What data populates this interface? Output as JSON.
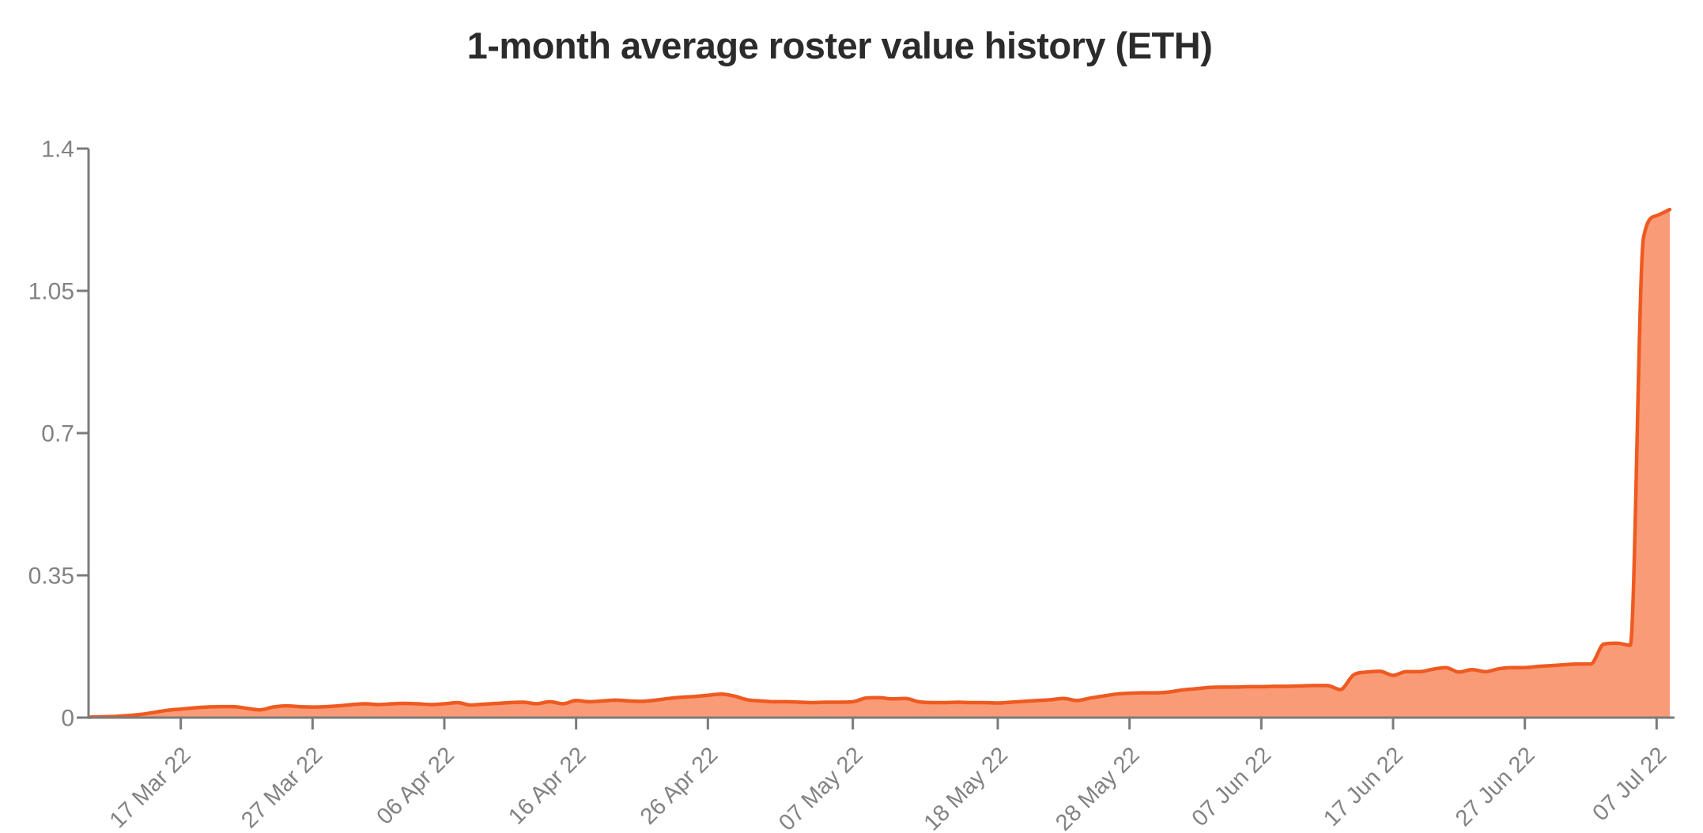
{
  "page": {
    "background": "#ffffff"
  },
  "chart_data": {
    "type": "area",
    "title": "1-month average roster value history (ETH)",
    "xlabel": "",
    "ylabel": "",
    "unit": "ETH",
    "ylim": [
      0,
      1.4
    ],
    "y_ticks": [
      0,
      0.35,
      0.7,
      1.05,
      1.4
    ],
    "y_tick_labels": [
      "0",
      "0.35",
      "0.7",
      "1.05",
      "1.4"
    ],
    "x_tick_labels": [
      "17 Mar 22",
      "27 Mar 22",
      "06 Apr 22",
      "16 Apr 22",
      "26 Apr 22",
      "07 May 22",
      "18 May 22",
      "28 May 22",
      "07 Jun 22",
      "17 Jun 22",
      "27 Jun 22",
      "07 Jul 22"
    ],
    "grid": false,
    "legend": "none",
    "colors": {
      "line": "#ee5a20",
      "area_fill": "#fa9b78",
      "axis": "#7b7b7b",
      "tick_label": "#828282",
      "title": "#2b2b2b",
      "background": "#ffffff"
    },
    "series": [
      {
        "points": [
          [
            "10 Mar 22",
            0.001
          ],
          [
            "11 Mar 22",
            0.002
          ],
          [
            "12 Mar 22",
            0.003
          ],
          [
            "13 Mar 22",
            0.005
          ],
          [
            "14 Mar 22",
            0.008
          ],
          [
            "15 Mar 22",
            0.013
          ],
          [
            "16 Mar 22",
            0.018
          ],
          [
            "17 Mar 22",
            0.021
          ],
          [
            "18 Mar 22",
            0.024
          ],
          [
            "19 Mar 22",
            0.026
          ],
          [
            "20 Mar 22",
            0.027
          ],
          [
            "21 Mar 22",
            0.027
          ],
          [
            "22 Mar 22",
            0.023
          ],
          [
            "23 Mar 22",
            0.019
          ],
          [
            "24 Mar 22",
            0.026
          ],
          [
            "25 Mar 22",
            0.029
          ],
          [
            "26 Mar 22",
            0.027
          ],
          [
            "27 Mar 22",
            0.026
          ],
          [
            "28 Mar 22",
            0.027
          ],
          [
            "29 Mar 22",
            0.029
          ],
          [
            "30 Mar 22",
            0.032
          ],
          [
            "31 Mar 22",
            0.034
          ],
          [
            "01 Apr 22",
            0.032
          ],
          [
            "02 Apr 22",
            0.034
          ],
          [
            "03 Apr 22",
            0.035
          ],
          [
            "04 Apr 22",
            0.034
          ],
          [
            "05 Apr 22",
            0.032
          ],
          [
            "06 Apr 22",
            0.034
          ],
          [
            "07 Apr 22",
            0.037
          ],
          [
            "08 Apr 22",
            0.031
          ],
          [
            "09 Apr 22",
            0.033
          ],
          [
            "10 Apr 22",
            0.035
          ],
          [
            "11 Apr 22",
            0.037
          ],
          [
            "12 Apr 22",
            0.038
          ],
          [
            "13 Apr 22",
            0.034
          ],
          [
            "14 Apr 22",
            0.039
          ],
          [
            "15 Apr 22",
            0.034
          ],
          [
            "16 Apr 22",
            0.042
          ],
          [
            "17 Apr 22",
            0.039
          ],
          [
            "18 Apr 22",
            0.041
          ],
          [
            "19 Apr 22",
            0.043
          ],
          [
            "20 Apr 22",
            0.041
          ],
          [
            "21 Apr 22",
            0.04
          ],
          [
            "22 Apr 22",
            0.043
          ],
          [
            "23 Apr 22",
            0.047
          ],
          [
            "24 Apr 22",
            0.05
          ],
          [
            "25 Apr 22",
            0.052
          ],
          [
            "26 Apr 22",
            0.055
          ],
          [
            "27 Apr 22",
            0.058
          ],
          [
            "28 Apr 22",
            0.053
          ],
          [
            "29 Apr 22",
            0.044
          ],
          [
            "30 Apr 22",
            0.041
          ],
          [
            "01 May 22",
            0.039
          ],
          [
            "02 May 22",
            0.039
          ],
          [
            "03 May 22",
            0.038
          ],
          [
            "04 May 22",
            0.037
          ],
          [
            "05 May 22",
            0.038
          ],
          [
            "06 May 22",
            0.038
          ],
          [
            "07 May 22",
            0.039
          ],
          [
            "08 May 22",
            0.048
          ],
          [
            "09 May 22",
            0.049
          ],
          [
            "10 May 22",
            0.046
          ],
          [
            "11 May 22",
            0.047
          ],
          [
            "12 May 22",
            0.039
          ],
          [
            "13 May 22",
            0.037
          ],
          [
            "14 May 22",
            0.037
          ],
          [
            "15 May 22",
            0.038
          ],
          [
            "16 May 22",
            0.037
          ],
          [
            "17 May 22",
            0.037
          ],
          [
            "18 May 22",
            0.036
          ],
          [
            "19 May 22",
            0.038
          ],
          [
            "20 May 22",
            0.04
          ],
          [
            "21 May 22",
            0.042
          ],
          [
            "22 May 22",
            0.044
          ],
          [
            "23 May 22",
            0.047
          ],
          [
            "24 May 22",
            0.042
          ],
          [
            "25 May 22",
            0.048
          ],
          [
            "26 May 22",
            0.053
          ],
          [
            "27 May 22",
            0.058
          ],
          [
            "28 May 22",
            0.06
          ],
          [
            "29 May 22",
            0.061
          ],
          [
            "30 May 22",
            0.061
          ],
          [
            "31 May 22",
            0.063
          ],
          [
            "01 Jun 22",
            0.068
          ],
          [
            "02 Jun 22",
            0.071
          ],
          [
            "03 Jun 22",
            0.074
          ],
          [
            "04 Jun 22",
            0.075
          ],
          [
            "05 Jun 22",
            0.075
          ],
          [
            "06 Jun 22",
            0.076
          ],
          [
            "07 Jun 22",
            0.076
          ],
          [
            "08 Jun 22",
            0.077
          ],
          [
            "09 Jun 22",
            0.077
          ],
          [
            "10 Jun 22",
            0.078
          ],
          [
            "11 Jun 22",
            0.079
          ],
          [
            "12 Jun 22",
            0.079
          ],
          [
            "13 Jun 22",
            0.069
          ],
          [
            "14 Jun 22",
            0.105
          ],
          [
            "15 Jun 22",
            0.112
          ],
          [
            "16 Jun 22",
            0.114
          ],
          [
            "17 Jun 22",
            0.104
          ],
          [
            "18 Jun 22",
            0.113
          ],
          [
            "19 Jun 22",
            0.113
          ],
          [
            "20 Jun 22",
            0.119
          ],
          [
            "21 Jun 22",
            0.123
          ],
          [
            "22 Jun 22",
            0.112
          ],
          [
            "23 Jun 22",
            0.118
          ],
          [
            "24 Jun 22",
            0.113
          ],
          [
            "25 Jun 22",
            0.12
          ],
          [
            "26 Jun 22",
            0.123
          ],
          [
            "27 Jun 22",
            0.123
          ],
          [
            "28 Jun 22",
            0.126
          ],
          [
            "29 Jun 22",
            0.128
          ],
          [
            "30 Jun 22",
            0.13
          ],
          [
            "01 Jul 22",
            0.132
          ],
          [
            "02 Jul 22",
            0.132
          ],
          [
            "03 Jul 22",
            0.181
          ],
          [
            "04 Jul 22",
            0.183
          ],
          [
            "05 Jul 22",
            0.178
          ],
          [
            "06 Jul 22",
            1.18
          ],
          [
            "07 Jul 22",
            1.235
          ],
          [
            "08 Jul 22",
            1.25
          ]
        ]
      }
    ]
  }
}
